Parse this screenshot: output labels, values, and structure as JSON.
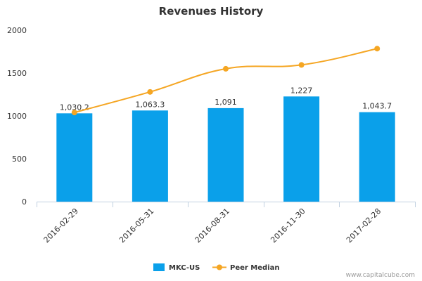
{
  "chart_data": {
    "type": "bar",
    "title": "Revenues History",
    "categories": [
      "2016-02-29",
      "2016-05-31",
      "2016-08-31",
      "2016-11-30",
      "2017-02-28"
    ],
    "series": [
      {
        "name": "MKC-US",
        "type": "bar",
        "values": [
          1030.2,
          1063.3,
          1091,
          1227,
          1043.7
        ],
        "labels": [
          "1,030.2",
          "1,063.3",
          "1,091",
          "1,227",
          "1,043.7"
        ],
        "color": "#0aa0ea"
      },
      {
        "name": "Peer Median",
        "type": "line",
        "values": [
          1040,
          1280,
          1550,
          1595,
          1785
        ],
        "color": "#f5a623"
      }
    ],
    "ylim": [
      0,
      2000
    ],
    "yticks": [
      0,
      500,
      1000,
      1500,
      2000
    ],
    "ytick_labels": [
      "0",
      "500",
      "1000",
      "1500",
      "2000"
    ],
    "grid": false,
    "legend_position": "bottom-center",
    "xlabel": "",
    "ylabel": ""
  },
  "credit": "www.capitalcube.com"
}
